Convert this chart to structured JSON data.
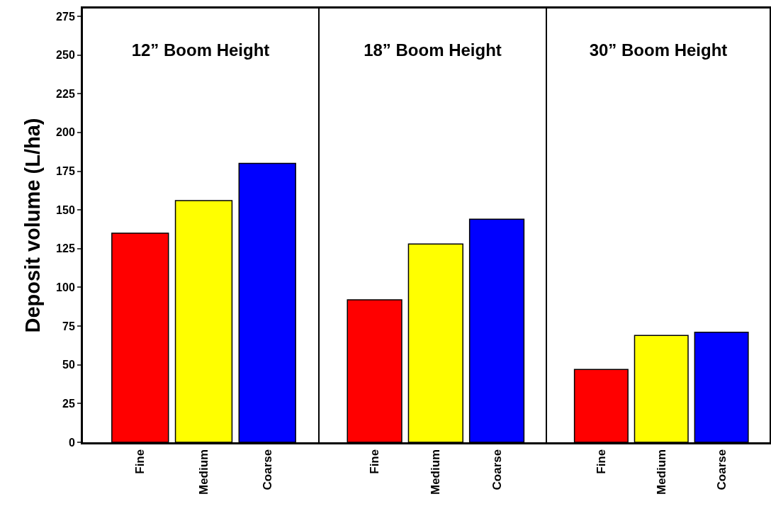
{
  "chart_data": [
    {
      "type": "bar",
      "title": "12” Boom Height",
      "ylabel": "Deposit volume (L/ha)",
      "categories": [
        "Fine",
        "Medium",
        "Coarse"
      ],
      "values": [
        135,
        156,
        180
      ],
      "colors": [
        "#ff0000",
        "#ffff00",
        "#0000ff"
      ],
      "ylim": [
        0,
        280
      ],
      "yticks": [
        0,
        25,
        50,
        75,
        100,
        125,
        150,
        175,
        200,
        225,
        250,
        275
      ]
    },
    {
      "type": "bar",
      "title": "18” Boom Height",
      "categories": [
        "Fine",
        "Medium",
        "Coarse"
      ],
      "values": [
        92,
        128,
        144
      ],
      "colors": [
        "#ff0000",
        "#ffff00",
        "#0000ff"
      ],
      "ylim": [
        0,
        280
      ],
      "yticks": [
        0,
        25,
        50,
        75,
        100,
        125,
        150,
        175,
        200,
        225,
        250,
        275
      ],
      "tick_labels": "x"
    },
    {
      "type": "bar",
      "title": "30” Boom Height",
      "categories": [
        "Fine",
        "Medium",
        "Coarse"
      ],
      "values": [
        47,
        69,
        71
      ],
      "colors": [
        "#ff0000",
        "#ffff00",
        "#0000ff"
      ],
      "ylim": [
        0,
        280
      ],
      "yticks": [
        0,
        25,
        50,
        75,
        100,
        125,
        150,
        175,
        200,
        225,
        250,
        275
      ],
      "tick_labels": "x"
    }
  ]
}
